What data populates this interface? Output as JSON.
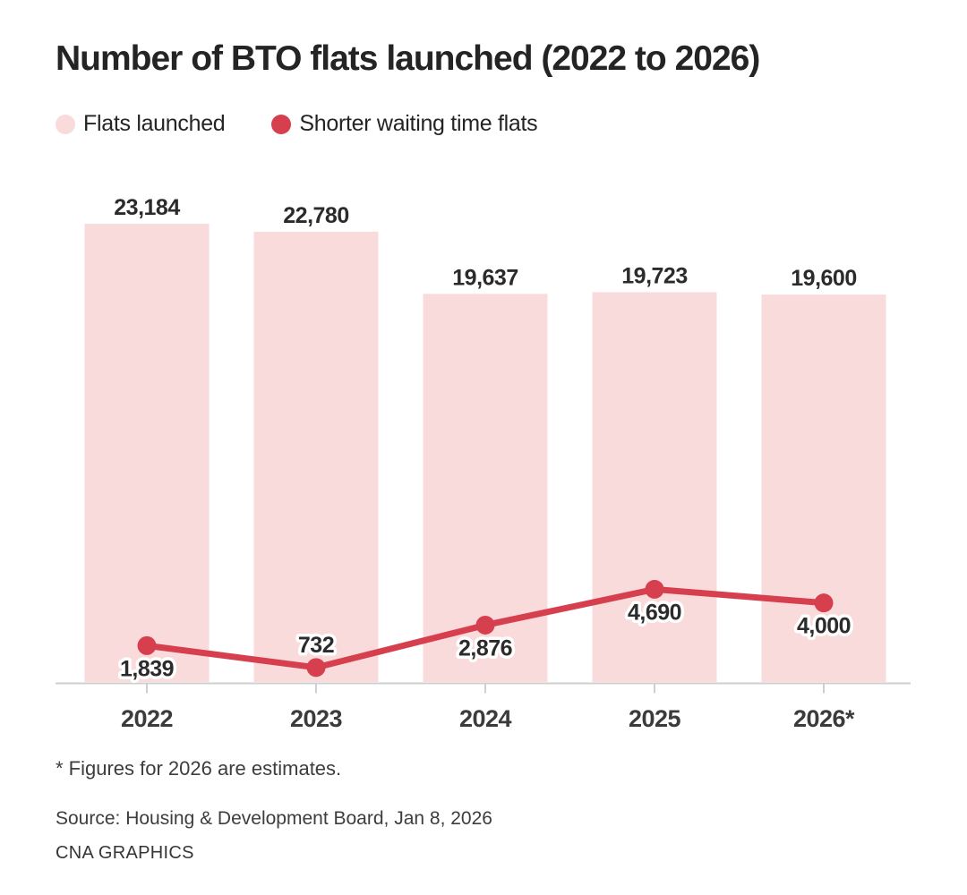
{
  "title": "Number of BTO flats launched (2022 to 2026)",
  "legend": [
    {
      "label": "Flats launched",
      "color": "#fadbdc"
    },
    {
      "label": "Shorter waiting time flats",
      "color": "#d6404e"
    }
  ],
  "chart_data": {
    "type": "bar+line",
    "title": "Number of BTO flats launched (2022 to 2026)",
    "categories": [
      "2022",
      "2023",
      "2024",
      "2025",
      "2026*"
    ],
    "series": [
      {
        "name": "Flats launched",
        "type": "bar",
        "color": "#fadbdc",
        "values": [
          23184,
          22780,
          19637,
          19723,
          19600
        ],
        "labels": [
          "23,184",
          "22,780",
          "19,637",
          "19,723",
          "19,600"
        ]
      },
      {
        "name": "Shorter waiting time flats",
        "type": "line",
        "color": "#d6404e",
        "values": [
          1839,
          732,
          2876,
          4690,
          4000
        ],
        "labels": [
          "1,839",
          "732",
          "2,876",
          "4,690",
          "4,000"
        ],
        "label_positions": [
          "below",
          "above",
          "below",
          "below",
          "below"
        ]
      }
    ],
    "ylim": [
      0,
      23184
    ],
    "grid": false,
    "legend_position": "top-left",
    "axis_color": "#cfcfcf",
    "label_halo_color": "#ffffff"
  },
  "footnote": "* Figures for 2026 are estimates.",
  "source": "Source: Housing & Development Board, Jan 8, 2026",
  "credit": "CNA GRAPHICS"
}
